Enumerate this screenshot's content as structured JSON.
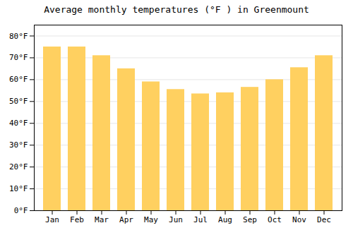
{
  "chart_data": {
    "type": "bar",
    "title": "Average monthly temperatures (°F ) in Greenmount",
    "categories": [
      "Jan",
      "Feb",
      "Mar",
      "Apr",
      "May",
      "Jun",
      "Jul",
      "Aug",
      "Sep",
      "Oct",
      "Nov",
      "Dec"
    ],
    "values": [
      75,
      75,
      71,
      65,
      59,
      55.5,
      53.5,
      54,
      56.5,
      60,
      65.5,
      71
    ],
    "color": "#FFD060",
    "ylim": [
      0,
      85
    ],
    "yticks": [
      {
        "value": 0,
        "label": "0°F"
      },
      {
        "value": 10,
        "label": "10°F"
      },
      {
        "value": 20,
        "label": "20°F"
      },
      {
        "value": 30,
        "label": "30°F"
      },
      {
        "value": 40,
        "label": "40°F"
      },
      {
        "value": 50,
        "label": "50°F"
      },
      {
        "value": 60,
        "label": "60°F"
      },
      {
        "value": 70,
        "label": "70°F"
      },
      {
        "value": 80,
        "label": "80°F"
      }
    ],
    "grid": true
  }
}
